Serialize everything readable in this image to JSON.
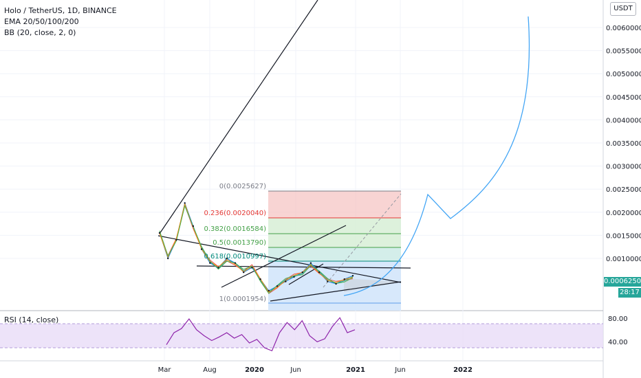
{
  "legend": {
    "title": "Holo / TetherUS, 1D, BINANCE",
    "ema": "EMA 20/50/100/200",
    "bb": "BB (20, close, 2, 0)"
  },
  "rsi_label": "RSI (14, close)",
  "currency": "USDT",
  "last_price": "0.0006250",
  "countdown": "28:17",
  "colors": {
    "fib_red": "#e53935",
    "fib_green": "#43a047",
    "fib_teal": "#00897b",
    "fib_blue": "#5c9be8",
    "curve": "#42a5f5",
    "rsi_line": "#8e24aa",
    "rsi_band": "#e9dcf7",
    "price_tag": "#26a69a"
  },
  "fib_labels": [
    {
      "text": "0(0.0025627)",
      "color": "#787b86"
    },
    {
      "text": "0.236(0.0020040)",
      "color": "#e53935"
    },
    {
      "text": "0.382(0.0016584)",
      "color": "#43a047"
    },
    {
      "text": "0.5(0.0013790)",
      "color": "#43a047"
    },
    {
      "text": "0.618(0.0010997)",
      "color": "#00897b"
    },
    {
      "text": "1(0.0001954)",
      "color": "#787b86"
    }
  ],
  "chart_data": {
    "type": "line",
    "y_ticks": [
      "0.0060000",
      "0.0055000",
      "0.0050000",
      "0.0045000",
      "0.0040000",
      "0.0035000",
      "0.0030000",
      "0.0025000",
      "0.0020000",
      "0.0015000",
      "0.0010000"
    ],
    "x_ticks": [
      "Mar",
      "Aug",
      "2020",
      "Jun",
      "2021",
      "Jun",
      "2022"
    ],
    "rsi_ticks": [
      "80.00",
      "40.00"
    ],
    "price_series": [
      {
        "x": "Feb",
        "y": 0.00155
      },
      {
        "x": "Mar",
        "y": 0.001
      },
      {
        "x": "Apr",
        "y": 0.0014
      },
      {
        "x": "May",
        "y": 0.0022
      },
      {
        "x": "Jun",
        "y": 0.0017
      },
      {
        "x": "Jul",
        "y": 0.0012
      },
      {
        "x": "Aug",
        "y": 0.0009
      },
      {
        "x": "Sep",
        "y": 0.0008
      },
      {
        "x": "Oct",
        "y": 0.001
      },
      {
        "x": "Nov",
        "y": 0.0009
      },
      {
        "x": "Dec",
        "y": 0.0007
      },
      {
        "x": "2020",
        "y": 0.0008
      },
      {
        "x": "Feb",
        "y": 0.00055
      },
      {
        "x": "Mar",
        "y": 0.0003
      },
      {
        "x": "Apr",
        "y": 0.0004
      },
      {
        "x": "May",
        "y": 0.0005
      },
      {
        "x": "Jun",
        "y": 0.0006
      },
      {
        "x": "Jul",
        "y": 0.0007
      },
      {
        "x": "Aug",
        "y": 0.0009
      },
      {
        "x": "Sep",
        "y": 0.0007
      },
      {
        "x": "Oct",
        "y": 0.0005
      },
      {
        "x": "Nov",
        "y": 0.00045
      },
      {
        "x": "Dec",
        "y": 0.00055
      },
      {
        "x": "2021",
        "y": 0.000625
      }
    ],
    "rsi_series": [
      35,
      55,
      62,
      78,
      60,
      50,
      42,
      48,
      55,
      46,
      52,
      38,
      44,
      30,
      25,
      55,
      72,
      60,
      75,
      50,
      40,
      45,
      65,
      80,
      55,
      60
    ]
  }
}
